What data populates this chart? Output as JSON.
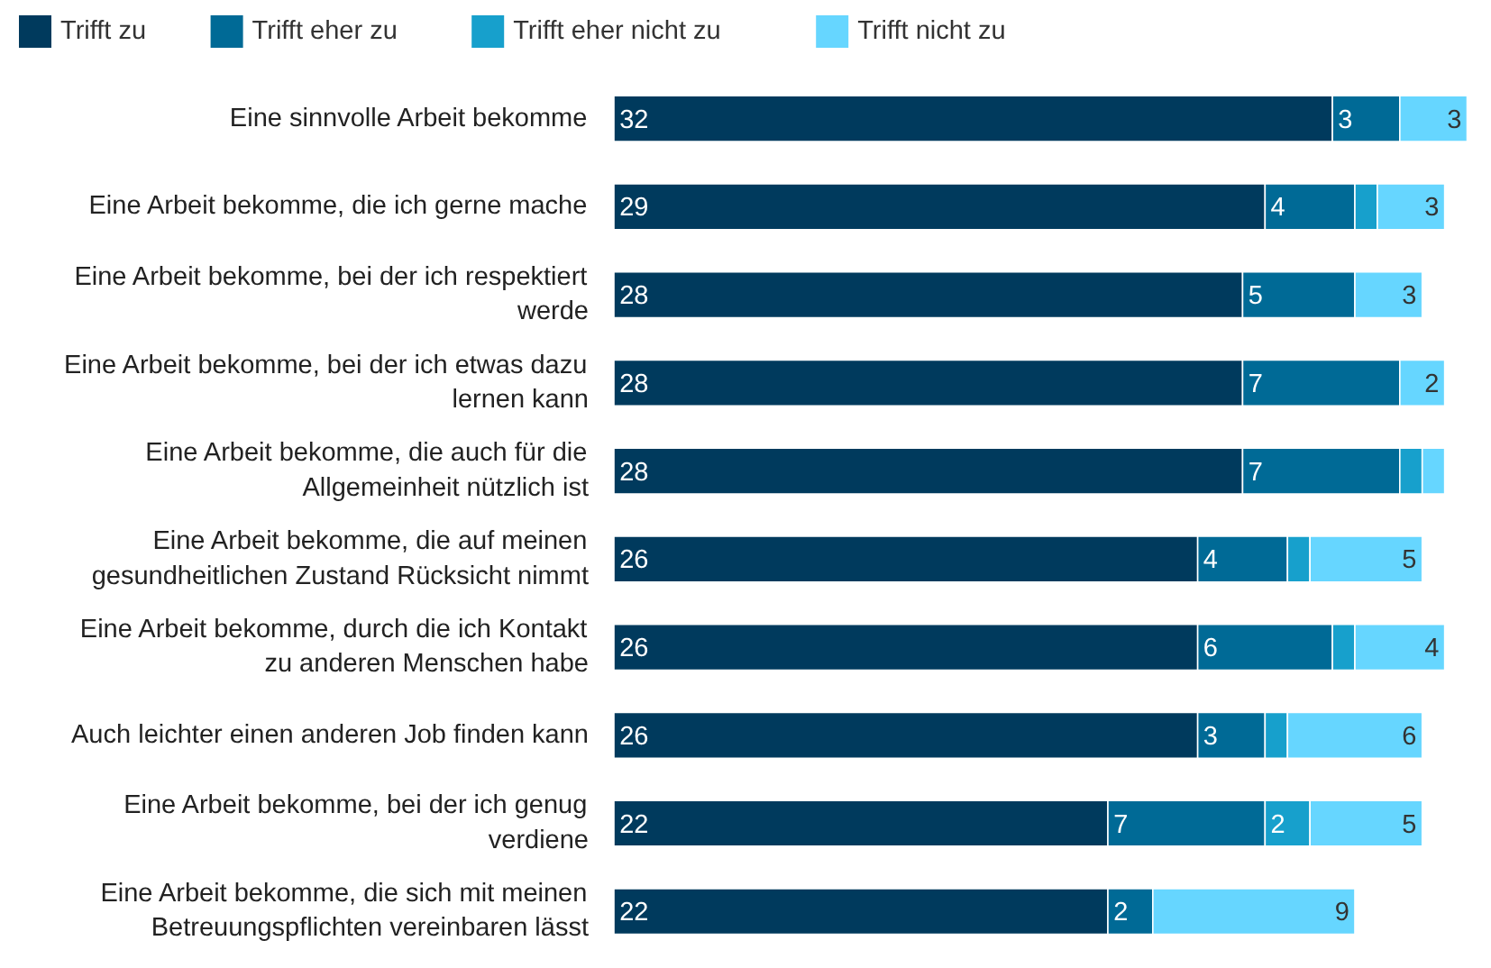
{
  "chart_data": {
    "type": "bar",
    "orientation": "horizontal",
    "stacked": true,
    "legend": "top left",
    "categories": [
      "Eine sinnvolle Arbeit bekomme",
      "Eine Arbeit bekomme, die ich gerne mache",
      "Eine Arbeit bekomme, bei der ich respektiert werde",
      "Eine Arbeit bekomme, bei der ich etwas dazu lernen kann",
      "Eine Arbeit bekomme, die auch für die Allgemeinheit nützlich ist",
      "Eine Arbeit bekomme, die auf meinen gesundheitlichen Zustand Rücksicht nimmt",
      "Eine Arbeit bekomme, durch die ich Kontakt zu anderen Menschen habe",
      "Auch leichter einen anderen Job finden kann",
      "Eine Arbeit bekomme, bei der ich genug verdiene",
      "Eine Arbeit bekomme, die sich mit meinen Betreuungspflichten vereinbaren lässt"
    ],
    "series": [
      {
        "name": "Trifft zu",
        "color": "#003a5d",
        "values": [
          32,
          29,
          28,
          28,
          28,
          26,
          26,
          26,
          22,
          22
        ],
        "value_labels": [
          "32",
          "29",
          "28",
          "28",
          "28",
          "26",
          "26",
          "26",
          "22",
          "22"
        ]
      },
      {
        "name": "Trifft eher zu",
        "color": "#006a96",
        "values": [
          3,
          4,
          5,
          7,
          7,
          4,
          6,
          3,
          7,
          2
        ],
        "value_labels": [
          "3",
          "4",
          "5",
          "7",
          "7",
          "4",
          "6",
          "3",
          "7",
          "2"
        ]
      },
      {
        "name": "Trifft eher nicht zu",
        "color": "#17a0cc",
        "values": [
          0,
          1,
          0,
          0,
          1,
          1,
          1,
          1,
          2,
          0
        ],
        "value_labels": [
          null,
          null,
          null,
          null,
          null,
          null,
          null,
          null,
          "2",
          null
        ]
      },
      {
        "name": "Trifft nicht zu",
        "color": "#66d6ff",
        "values": [
          3,
          3,
          3,
          2,
          1,
          5,
          4,
          6,
          5,
          9
        ],
        "value_labels": [
          "3",
          "3",
          "3",
          "2",
          null,
          "5",
          "4",
          "6",
          "5",
          "9"
        ]
      }
    ]
  }
}
